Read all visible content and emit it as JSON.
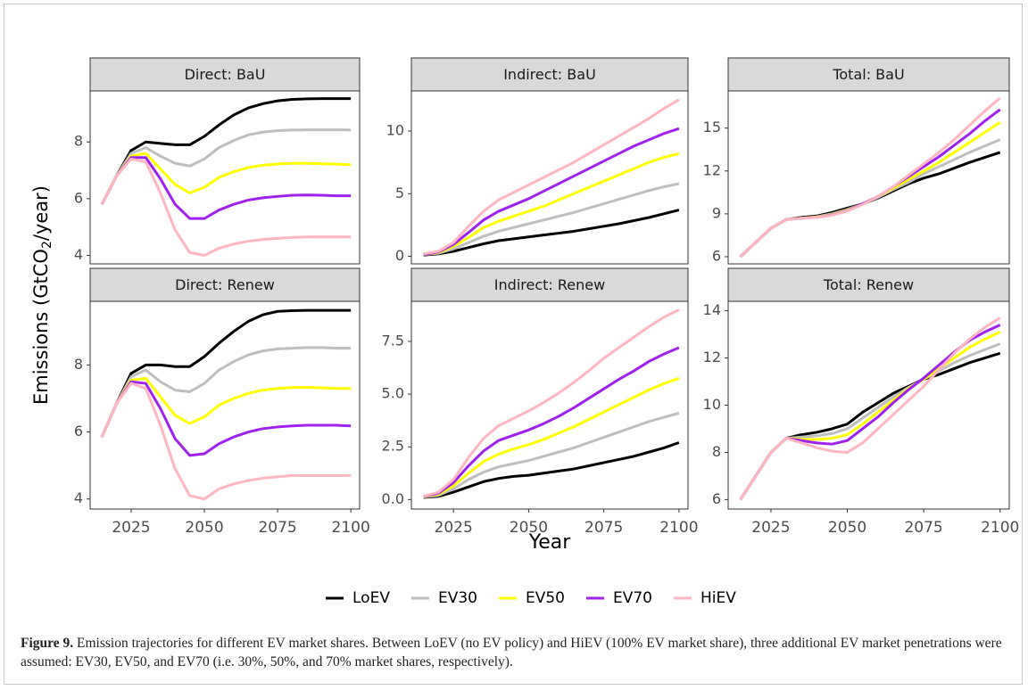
{
  "chart_data": [
    {
      "type": "line",
      "title": "Direct: BaU",
      "x": [
        2015,
        2020,
        2025,
        2030,
        2035,
        2040,
        2045,
        2050,
        2055,
        2060,
        2065,
        2070,
        2075,
        2080,
        2085,
        2090,
        2095,
        2100
      ],
      "xlim": [
        2011,
        2103
      ],
      "ylim": [
        3.7,
        9.8
      ],
      "yticks": [
        4,
        6,
        8
      ],
      "series": [
        {
          "values": [
            5.8,
            6.8,
            7.7,
            8.0,
            7.95,
            7.9,
            7.9,
            8.2,
            8.6,
            8.95,
            9.2,
            9.35,
            9.45,
            9.5,
            9.52,
            9.53,
            9.53,
            9.53
          ]
        },
        {
          "values": [
            5.8,
            6.8,
            7.6,
            7.8,
            7.5,
            7.25,
            7.15,
            7.4,
            7.8,
            8.05,
            8.25,
            8.35,
            8.4,
            8.42,
            8.43,
            8.43,
            8.43,
            8.42
          ]
        },
        {
          "values": [
            5.8,
            6.8,
            7.5,
            7.6,
            7.05,
            6.5,
            6.2,
            6.4,
            6.75,
            6.95,
            7.1,
            7.18,
            7.22,
            7.25,
            7.25,
            7.23,
            7.22,
            7.2
          ]
        },
        {
          "values": [
            5.8,
            6.8,
            7.45,
            7.45,
            6.7,
            5.8,
            5.3,
            5.3,
            5.6,
            5.8,
            5.95,
            6.03,
            6.08,
            6.12,
            6.13,
            6.12,
            6.1,
            6.1
          ]
        },
        {
          "values": [
            5.8,
            6.8,
            7.4,
            7.3,
            6.2,
            4.9,
            4.1,
            4.0,
            4.25,
            4.4,
            4.5,
            4.56,
            4.6,
            4.63,
            4.65,
            4.65,
            4.65,
            4.65
          ]
        }
      ]
    },
    {
      "type": "line",
      "title": "Indirect: BaU",
      "x": [
        2015,
        2020,
        2025,
        2030,
        2035,
        2040,
        2045,
        2050,
        2055,
        2060,
        2065,
        2070,
        2075,
        2080,
        2085,
        2090,
        2095,
        2100
      ],
      "xlim": [
        2011,
        2103
      ],
      "ylim": [
        -0.6,
        13.2
      ],
      "yticks": [
        0,
        5,
        10
      ],
      "series": [
        {
          "values": [
            0.1,
            0.2,
            0.4,
            0.7,
            1.0,
            1.25,
            1.4,
            1.55,
            1.7,
            1.85,
            2.0,
            2.2,
            2.4,
            2.6,
            2.85,
            3.1,
            3.4,
            3.7
          ]
        },
        {
          "values": [
            0.15,
            0.25,
            0.6,
            1.1,
            1.6,
            2.0,
            2.3,
            2.6,
            2.9,
            3.2,
            3.5,
            3.85,
            4.2,
            4.55,
            4.9,
            5.25,
            5.55,
            5.8
          ]
        },
        {
          "values": [
            0.15,
            0.3,
            0.8,
            1.5,
            2.3,
            2.8,
            3.2,
            3.6,
            4.0,
            4.5,
            5.0,
            5.5,
            6.0,
            6.5,
            7.0,
            7.5,
            7.9,
            8.2
          ]
        },
        {
          "values": [
            0.15,
            0.35,
            0.95,
            1.9,
            2.9,
            3.6,
            4.1,
            4.6,
            5.2,
            5.8,
            6.4,
            7.0,
            7.6,
            8.2,
            8.8,
            9.3,
            9.8,
            10.2
          ]
        },
        {
          "values": [
            0.2,
            0.4,
            1.1,
            2.4,
            3.6,
            4.5,
            5.1,
            5.7,
            6.3,
            6.9,
            7.5,
            8.2,
            8.9,
            9.6,
            10.3,
            11.0,
            11.8,
            12.5
          ]
        }
      ]
    },
    {
      "type": "line",
      "title": "Total: BaU",
      "x": [
        2015,
        2020,
        2025,
        2030,
        2035,
        2040,
        2045,
        2050,
        2055,
        2060,
        2065,
        2070,
        2075,
        2080,
        2085,
        2090,
        2095,
        2100
      ],
      "xlim": [
        2011,
        2103
      ],
      "ylim": [
        5.5,
        17.6
      ],
      "yticks": [
        6,
        9,
        12,
        15
      ],
      "series": [
        {
          "values": [
            6.0,
            7.0,
            8.0,
            8.6,
            8.75,
            8.85,
            9.1,
            9.4,
            9.7,
            10.1,
            10.6,
            11.1,
            11.5,
            11.8,
            12.2,
            12.6,
            12.95,
            13.3
          ]
        },
        {
          "values": [
            6.0,
            7.0,
            8.0,
            8.6,
            8.7,
            8.8,
            9.0,
            9.3,
            9.7,
            10.15,
            10.7,
            11.2,
            11.8,
            12.3,
            12.8,
            13.3,
            13.75,
            14.2
          ]
        },
        {
          "values": [
            6.0,
            7.0,
            8.0,
            8.6,
            8.7,
            8.78,
            8.95,
            9.25,
            9.7,
            10.2,
            10.8,
            11.4,
            12.0,
            12.6,
            13.3,
            14.0,
            14.7,
            15.4
          ]
        },
        {
          "values": [
            6.0,
            7.0,
            8.0,
            8.6,
            8.7,
            8.76,
            8.92,
            9.22,
            9.7,
            10.2,
            10.9,
            11.6,
            12.3,
            13.0,
            13.8,
            14.6,
            15.5,
            16.3
          ]
        },
        {
          "values": [
            6.0,
            7.0,
            8.0,
            8.6,
            8.7,
            8.75,
            8.9,
            9.2,
            9.65,
            10.2,
            10.9,
            11.7,
            12.5,
            13.3,
            14.2,
            15.2,
            16.2,
            17.1
          ]
        }
      ]
    },
    {
      "type": "line",
      "title": "Direct: Renew",
      "x": [
        2015,
        2020,
        2025,
        2030,
        2035,
        2040,
        2045,
        2050,
        2055,
        2060,
        2065,
        2070,
        2075,
        2080,
        2085,
        2090,
        2095,
        2100
      ],
      "xlim": [
        2011,
        2103
      ],
      "xticks": [
        2025,
        2050,
        2075,
        2100
      ],
      "ylim": [
        3.7,
        9.9
      ],
      "yticks": [
        4,
        6,
        8
      ],
      "series": [
        {
          "values": [
            5.85,
            6.85,
            7.75,
            8.0,
            8.0,
            7.95,
            7.95,
            8.25,
            8.65,
            9.0,
            9.3,
            9.5,
            9.6,
            9.62,
            9.63,
            9.63,
            9.63,
            9.63
          ]
        },
        {
          "values": [
            5.85,
            6.85,
            7.65,
            7.85,
            7.5,
            7.25,
            7.2,
            7.45,
            7.85,
            8.1,
            8.3,
            8.42,
            8.48,
            8.5,
            8.52,
            8.52,
            8.5,
            8.5
          ]
        },
        {
          "values": [
            5.85,
            6.85,
            7.55,
            7.6,
            7.05,
            6.5,
            6.25,
            6.45,
            6.8,
            7.0,
            7.15,
            7.25,
            7.3,
            7.33,
            7.33,
            7.32,
            7.3,
            7.3
          ]
        },
        {
          "values": [
            5.85,
            6.85,
            7.5,
            7.45,
            6.7,
            5.8,
            5.3,
            5.35,
            5.65,
            5.85,
            6.0,
            6.1,
            6.15,
            6.18,
            6.2,
            6.2,
            6.2,
            6.18
          ]
        },
        {
          "values": [
            5.85,
            6.85,
            7.45,
            7.3,
            6.2,
            4.9,
            4.1,
            4.0,
            4.3,
            4.45,
            4.55,
            4.62,
            4.66,
            4.7,
            4.7,
            4.7,
            4.7,
            4.7
          ]
        }
      ]
    },
    {
      "type": "line",
      "title": "Indirect: Renew",
      "x": [
        2015,
        2020,
        2025,
        2030,
        2035,
        2040,
        2045,
        2050,
        2055,
        2060,
        2065,
        2070,
        2075,
        2080,
        2085,
        2090,
        2095,
        2100
      ],
      "xlim": [
        2011,
        2103
      ],
      "xticks": [
        2025,
        2050,
        2075,
        2100
      ],
      "ylim": [
        -0.45,
        9.4
      ],
      "yticks": [
        {
          "value": 0,
          "label": "0.0"
        },
        2.5,
        {
          "value": 5,
          "label": "5.0"
        },
        7.5
      ],
      "series": [
        {
          "values": [
            0.1,
            0.15,
            0.35,
            0.6,
            0.85,
            1.0,
            1.1,
            1.15,
            1.25,
            1.35,
            1.45,
            1.6,
            1.75,
            1.9,
            2.05,
            2.25,
            2.45,
            2.7
          ]
        },
        {
          "values": [
            0.12,
            0.2,
            0.5,
            0.95,
            1.3,
            1.55,
            1.7,
            1.85,
            2.05,
            2.25,
            2.45,
            2.7,
            2.95,
            3.2,
            3.45,
            3.7,
            3.9,
            4.1
          ]
        },
        {
          "values": [
            0.13,
            0.25,
            0.65,
            1.25,
            1.8,
            2.15,
            2.4,
            2.6,
            2.85,
            3.15,
            3.45,
            3.8,
            4.15,
            4.5,
            4.85,
            5.2,
            5.5,
            5.75
          ]
        },
        {
          "values": [
            0.14,
            0.3,
            0.8,
            1.6,
            2.3,
            2.8,
            3.05,
            3.3,
            3.6,
            3.95,
            4.35,
            4.8,
            5.25,
            5.7,
            6.1,
            6.55,
            6.9,
            7.2
          ]
        },
        {
          "values": [
            0.15,
            0.35,
            0.95,
            2.0,
            2.9,
            3.5,
            3.85,
            4.2,
            4.6,
            5.05,
            5.55,
            6.1,
            6.7,
            7.2,
            7.7,
            8.2,
            8.65,
            9.0
          ]
        }
      ]
    },
    {
      "type": "line",
      "title": "Total: Renew",
      "x": [
        2015,
        2020,
        2025,
        2030,
        2035,
        2040,
        2045,
        2050,
        2055,
        2060,
        2065,
        2070,
        2075,
        2080,
        2085,
        2090,
        2095,
        2100
      ],
      "xlim": [
        2011,
        2103
      ],
      "xticks": [
        2025,
        2050,
        2075,
        2100
      ],
      "ylim": [
        5.6,
        14.4
      ],
      "yticks": [
        6,
        8,
        10,
        12,
        14
      ],
      "series": [
        {
          "values": [
            6.0,
            7.0,
            8.0,
            8.6,
            8.75,
            8.85,
            9.0,
            9.2,
            9.7,
            10.1,
            10.5,
            10.8,
            11.1,
            11.3,
            11.55,
            11.8,
            12.0,
            12.2
          ]
        },
        {
          "values": [
            6.0,
            7.0,
            8.0,
            8.6,
            8.65,
            8.7,
            8.8,
            9.0,
            9.45,
            9.9,
            10.35,
            10.75,
            11.1,
            11.45,
            11.8,
            12.1,
            12.35,
            12.6
          ]
        },
        {
          "values": [
            6.0,
            7.0,
            8.0,
            8.6,
            8.55,
            8.55,
            8.6,
            8.75,
            9.2,
            9.7,
            10.2,
            10.7,
            11.1,
            11.55,
            12.0,
            12.45,
            12.8,
            13.1
          ]
        },
        {
          "values": [
            6.0,
            7.0,
            8.0,
            8.6,
            8.5,
            8.4,
            8.35,
            8.5,
            9.0,
            9.5,
            10.1,
            10.65,
            11.15,
            11.7,
            12.25,
            12.75,
            13.1,
            13.4
          ]
        },
        {
          "values": [
            6.0,
            7.0,
            8.0,
            8.6,
            8.4,
            8.2,
            8.05,
            8.0,
            8.4,
            9.0,
            9.6,
            10.2,
            10.8,
            11.5,
            12.2,
            12.8,
            13.3,
            13.7
          ]
        }
      ]
    }
  ],
  "legend": [
    {
      "name": "LoEV",
      "color": "#000000"
    },
    {
      "name": "EV30",
      "color": "#bebebe"
    },
    {
      "name": "EV50",
      "color": "#ffff00"
    },
    {
      "name": "EV70",
      "color": "#a020f0"
    },
    {
      "name": "HiEV",
      "color": "#ffb6c1"
    }
  ],
  "x_label": "Year",
  "y_label": {
    "before": "Emissions (GtCO",
    "sub": "2",
    "after": "/year)"
  },
  "caption": {
    "label": "Figure 9.",
    "text": " Emission trajectories for different EV market shares. Between LoEV (no EV policy) and HiEV (100% EV market share), three additional EV market penetrations were assumed: EV30, EV50, and EV70 (i.e. 30%, 50%, and 70% market shares, respectively)."
  }
}
